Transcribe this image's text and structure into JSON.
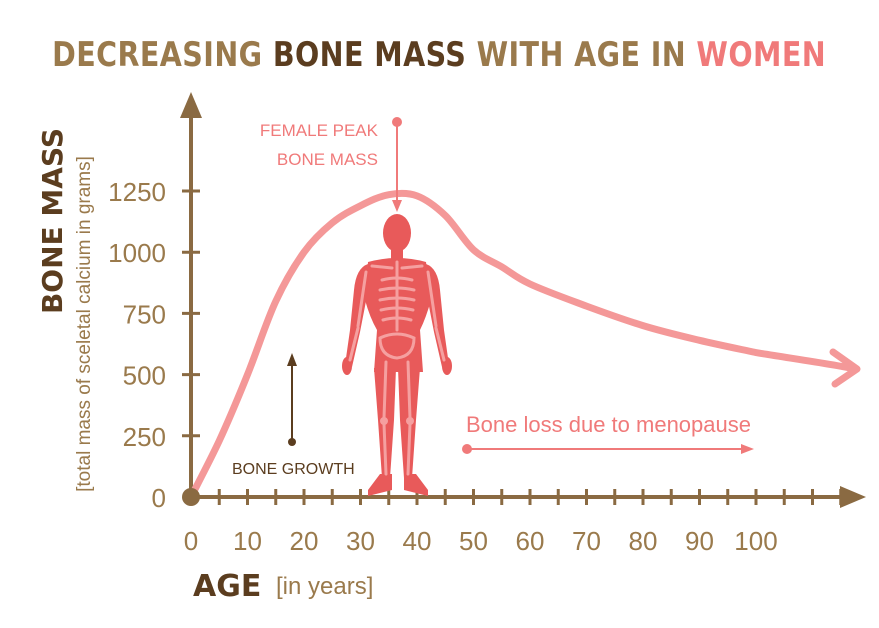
{
  "title": {
    "part1": "DECREASING ",
    "part2": "BONE MASS",
    "part3": " WITH AGE IN ",
    "part4": "WOMEN"
  },
  "colors": {
    "brown_light": "#9a7a4c",
    "brown_dark": "#5b3d1f",
    "axis": "#8a6a42",
    "pink": "#f07a7a",
    "curve": "#f49898",
    "body": "#e85a5a",
    "skeleton": "#f5a0a0",
    "white": "#ffffff"
  },
  "chart_data": {
    "type": "line",
    "title": "DECREASING BONE MASS WITH AGE IN WOMEN",
    "xlabel": "AGE",
    "xlabel_unit": "[in years]",
    "ylabel": "BONE MASS",
    "ylabel_unit": "[total mass of sceletal calcium in grams]",
    "x_ticks": [
      "0",
      "10",
      "20",
      "30",
      "40",
      "50",
      "60",
      "70",
      "80",
      "90",
      "100"
    ],
    "y_ticks": [
      "0",
      "250",
      "500",
      "750",
      "1000",
      "1250"
    ],
    "xlim": [
      0,
      100
    ],
    "ylim": [
      0,
      1250
    ],
    "series": [
      {
        "x": [
          0,
          5,
          10,
          15,
          20,
          25,
          30,
          35,
          40,
          45,
          50,
          55,
          60,
          70,
          80,
          90,
          100
        ],
        "y": [
          0,
          230,
          500,
          800,
          1000,
          1120,
          1190,
          1235,
          1230,
          1150,
          1010,
          940,
          870,
          780,
          700,
          640,
          590
        ]
      }
    ],
    "annotations": {
      "peak": {
        "line1": "FEMALE PEAK",
        "line2": "BONE MASS",
        "x": 37,
        "y": 1235
      },
      "growth": {
        "text": "BONE GROWTH"
      },
      "loss": {
        "text": "Bone loss due to menopause"
      }
    }
  }
}
